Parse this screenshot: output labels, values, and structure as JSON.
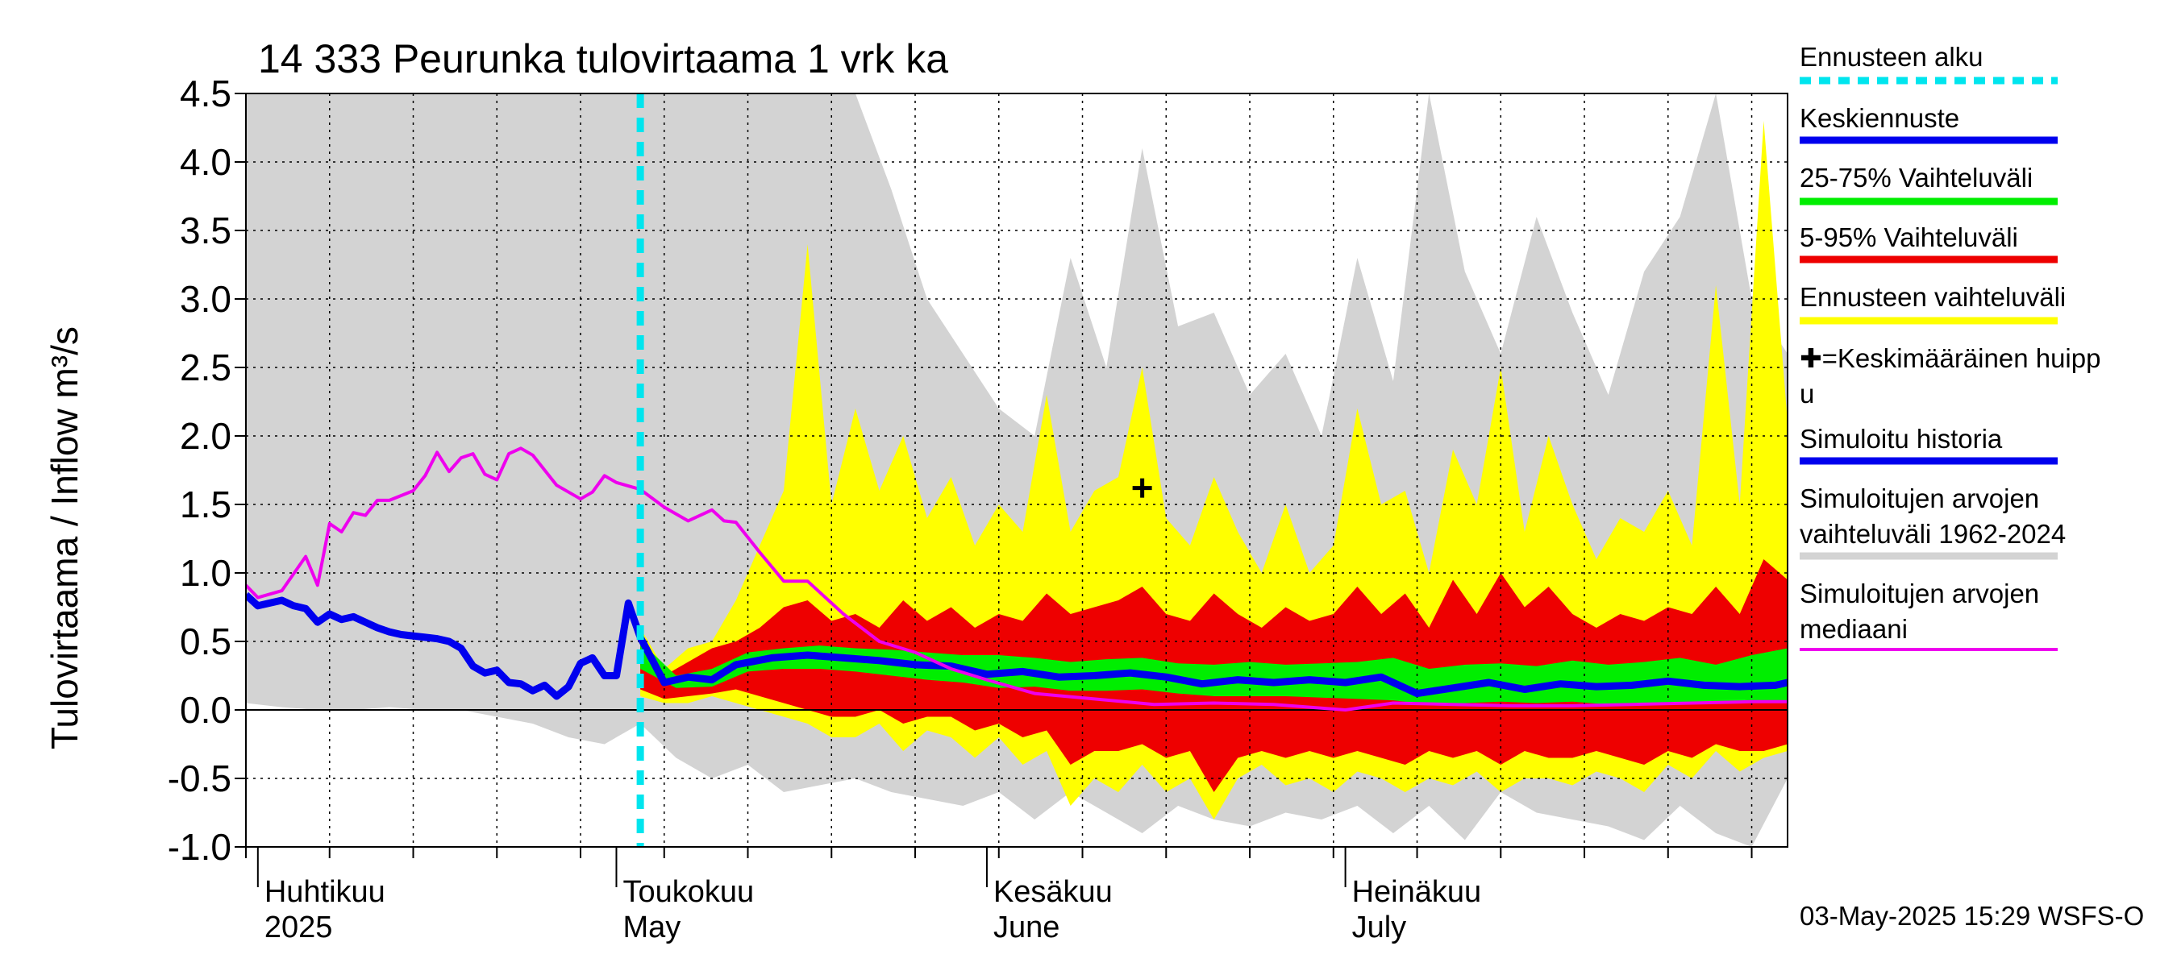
{
  "chart_data": {
    "type": "area",
    "title": "14 333 Peurunka tulovirtaama 1 vrk ka",
    "ylabel": "Tulovirtaama / Inflow   m³/s",
    "ylim": [
      -1.0,
      4.5
    ],
    "yticks": [
      "4.5",
      "4.0",
      "3.5",
      "3.0",
      "2.5",
      "2.0",
      "1.5",
      "1.0",
      "0.5",
      "0.0",
      "-0.5",
      "-1.0"
    ],
    "ytick_values": [
      4.5,
      4.0,
      3.5,
      3.0,
      2.5,
      2.0,
      1.5,
      1.0,
      0.5,
      0.0,
      -0.5,
      -1.0
    ],
    "x_start": "2025-03-31",
    "x_end": "2025-08-07",
    "month_labels": [
      {
        "date": "2025-04-01",
        "line1": "Huhtikuu",
        "line2": "2025"
      },
      {
        "date": "2025-05-01",
        "line1": "Toukokuu",
        "line2": "May"
      },
      {
        "date": "2025-06-01",
        "line1": "Kesäkuu",
        "line2": "June"
      },
      {
        "date": "2025-07-01",
        "line1": "Heinäkuu",
        "line2": "July"
      }
    ],
    "forecast_start": "2025-05-03",
    "mean_peak": {
      "date": "2025-06-14",
      "value": 1.62
    },
    "timestamp": "03-May-2025 15:29 WSFS-O",
    "legend": [
      {
        "label": "Ennusteen alku",
        "color": "#00e5ee",
        "style": "dashed"
      },
      {
        "label": "Keskiennuste",
        "color": "#0000ee",
        "style": "solid"
      },
      {
        "label": "25-75% Vaihteluväli",
        "color": "#00ee00",
        "style": "solid"
      },
      {
        "label": "5-95% Vaihteluväli",
        "color": "#ee0000",
        "style": "solid"
      },
      {
        "label": "Ennusteen vaihteluväli",
        "color": "#ffff00",
        "style": "solid"
      },
      {
        "label": "✚=Keskimääräinen huipp u",
        "color": "#000000",
        "style": "marker"
      },
      {
        "label": "Simuloitu historia",
        "color": "#0000ee",
        "style": "solid"
      },
      {
        "label": "Simuloitujen arvojen vaihteluväli 1962-2024",
        "color": "#d3d3d3",
        "style": "solid"
      },
      {
        "label": "Simuloitujen arvojen mediaani",
        "color": "#ee00ee",
        "style": "solid"
      }
    ],
    "series": [
      {
        "name": "Simuloitu historia",
        "color": "#0000ee",
        "x": [
          "2025-03-31",
          "2025-04-01",
          "2025-04-02",
          "2025-04-03",
          "2025-04-04",
          "2025-04-05",
          "2025-04-06",
          "2025-04-07",
          "2025-04-08",
          "2025-04-09",
          "2025-04-10",
          "2025-04-11",
          "2025-04-12",
          "2025-04-13",
          "2025-04-14",
          "2025-04-15",
          "2025-04-16",
          "2025-04-17",
          "2025-04-18",
          "2025-04-19",
          "2025-04-20",
          "2025-04-21",
          "2025-04-22",
          "2025-04-23",
          "2025-04-24",
          "2025-04-25",
          "2025-04-26",
          "2025-04-27",
          "2025-04-28",
          "2025-04-29",
          "2025-04-30",
          "2025-05-01",
          "2025-05-02",
          "2025-05-03"
        ],
        "values": [
          0.84,
          0.76,
          0.78,
          0.8,
          0.76,
          0.74,
          0.64,
          0.7,
          0.66,
          0.68,
          0.64,
          0.6,
          0.57,
          0.55,
          0.54,
          0.53,
          0.52,
          0.5,
          0.45,
          0.32,
          0.27,
          0.29,
          0.2,
          0.19,
          0.14,
          0.18,
          0.1,
          0.17,
          0.34,
          0.38,
          0.25,
          0.25,
          0.78,
          0.53
        ]
      },
      {
        "name": "Keskiennuste",
        "color": "#0000ee",
        "x": [
          "2025-05-03",
          "2025-05-05",
          "2025-05-07",
          "2025-05-09",
          "2025-05-11",
          "2025-05-14",
          "2025-05-17",
          "2025-05-20",
          "2025-05-23",
          "2025-05-26",
          "2025-05-29",
          "2025-06-01",
          "2025-06-04",
          "2025-06-07",
          "2025-06-10",
          "2025-06-13",
          "2025-06-16",
          "2025-06-19",
          "2025-06-22",
          "2025-06-25",
          "2025-06-28",
          "2025-07-01",
          "2025-07-04",
          "2025-07-07",
          "2025-07-10",
          "2025-07-13",
          "2025-07-16",
          "2025-07-19",
          "2025-07-22",
          "2025-07-25",
          "2025-07-28",
          "2025-07-31",
          "2025-08-03",
          "2025-08-06",
          "2025-08-07"
        ],
        "values": [
          0.53,
          0.2,
          0.24,
          0.22,
          0.33,
          0.38,
          0.4,
          0.38,
          0.36,
          0.33,
          0.32,
          0.26,
          0.28,
          0.24,
          0.25,
          0.27,
          0.24,
          0.19,
          0.22,
          0.2,
          0.22,
          0.2,
          0.24,
          0.12,
          0.16,
          0.2,
          0.15,
          0.19,
          0.17,
          0.18,
          0.21,
          0.18,
          0.17,
          0.18,
          0.2
        ]
      },
      {
        "name": "Simuloitujen arvojen mediaani",
        "color": "#ee00ee",
        "x": [
          "2025-03-31",
          "2025-04-01",
          "2025-04-03",
          "2025-04-05",
          "2025-04-06",
          "2025-04-07",
          "2025-04-08",
          "2025-04-09",
          "2025-04-10",
          "2025-04-11",
          "2025-04-12",
          "2025-04-14",
          "2025-04-15",
          "2025-04-16",
          "2025-04-17",
          "2025-04-18",
          "2025-04-19",
          "2025-04-20",
          "2025-04-21",
          "2025-04-22",
          "2025-04-23",
          "2025-04-24",
          "2025-04-26",
          "2025-04-27",
          "2025-04-28",
          "2025-04-29",
          "2025-04-30",
          "2025-05-01",
          "2025-05-03",
          "2025-05-05",
          "2025-05-07",
          "2025-05-09",
          "2025-05-10",
          "2025-05-11",
          "2025-05-13",
          "2025-05-15",
          "2025-05-17",
          "2025-05-20",
          "2025-05-23",
          "2025-05-26",
          "2025-05-29",
          "2025-06-01",
          "2025-06-05",
          "2025-06-10",
          "2025-06-15",
          "2025-06-20",
          "2025-06-25",
          "2025-07-01",
          "2025-07-05",
          "2025-07-10",
          "2025-07-15",
          "2025-07-20",
          "2025-07-25",
          "2025-07-30",
          "2025-08-04",
          "2025-08-07"
        ],
        "values": [
          0.91,
          0.82,
          0.87,
          1.12,
          0.91,
          1.36,
          1.3,
          1.44,
          1.42,
          1.53,
          1.53,
          1.6,
          1.71,
          1.88,
          1.74,
          1.84,
          1.87,
          1.72,
          1.68,
          1.87,
          1.91,
          1.86,
          1.64,
          1.59,
          1.54,
          1.59,
          1.71,
          1.66,
          1.61,
          1.48,
          1.38,
          1.46,
          1.38,
          1.37,
          1.15,
          0.94,
          0.94,
          0.7,
          0.5,
          0.42,
          0.3,
          0.22,
          0.12,
          0.08,
          0.04,
          0.05,
          0.04,
          0.0,
          0.05,
          0.04,
          0.03,
          0.03,
          0.04,
          0.05,
          0.06,
          0.06
        ]
      }
    ],
    "bands": [
      {
        "name": "Simuloitujen arvojen vaihteluväli 1962-2024",
        "color": "#d3d3d3",
        "x": [
          "2025-03-31",
          "2025-04-03",
          "2025-04-06",
          "2025-04-09",
          "2025-04-12",
          "2025-04-15",
          "2025-04-18",
          "2025-04-21",
          "2025-04-24",
          "2025-04-27",
          "2025-04-30",
          "2025-05-03",
          "2025-05-06",
          "2025-05-09",
          "2025-05-12",
          "2025-05-15",
          "2025-05-18",
          "2025-05-21",
          "2025-05-24",
          "2025-05-27",
          "2025-05-30",
          "2025-06-02",
          "2025-06-05",
          "2025-06-08",
          "2025-06-11",
          "2025-06-14",
          "2025-06-17",
          "2025-06-20",
          "2025-06-23",
          "2025-06-26",
          "2025-06-29",
          "2025-07-02",
          "2025-07-05",
          "2025-07-08",
          "2025-07-11",
          "2025-07-14",
          "2025-07-17",
          "2025-07-20",
          "2025-07-23",
          "2025-07-26",
          "2025-07-29",
          "2025-08-01",
          "2025-08-04",
          "2025-08-07"
        ],
        "upper": [
          4.5,
          4.5,
          4.5,
          4.5,
          4.5,
          4.5,
          4.5,
          4.5,
          4.5,
          4.5,
          4.5,
          4.5,
          4.5,
          4.5,
          4.5,
          4.5,
          4.5,
          4.5,
          3.8,
          3.0,
          2.6,
          2.2,
          2.0,
          3.3,
          2.5,
          4.1,
          2.8,
          2.9,
          2.3,
          2.6,
          2.0,
          3.3,
          2.4,
          4.5,
          3.2,
          2.6,
          3.6,
          2.9,
          2.3,
          3.2,
          3.6,
          4.5,
          3.0,
          2.6
        ],
        "lower": [
          0.05,
          0.02,
          0.0,
          0.0,
          0.02,
          0.0,
          0.0,
          -0.05,
          -0.1,
          -0.2,
          -0.25,
          -0.1,
          -0.35,
          -0.5,
          -0.4,
          -0.6,
          -0.55,
          -0.5,
          -0.6,
          -0.65,
          -0.7,
          -0.6,
          -0.8,
          -0.6,
          -0.75,
          -0.9,
          -0.7,
          -0.8,
          -0.85,
          -0.75,
          -0.8,
          -0.7,
          -0.9,
          -0.7,
          -0.95,
          -0.6,
          -0.75,
          -0.8,
          -0.85,
          -0.95,
          -0.7,
          -0.9,
          -1.0,
          -0.5
        ]
      },
      {
        "name": "Ennusteen vaihteluväli",
        "color": "#ffff00",
        "x": [
          "2025-05-03",
          "2025-05-05",
          "2025-05-07",
          "2025-05-09",
          "2025-05-11",
          "2025-05-13",
          "2025-05-15",
          "2025-05-17",
          "2025-05-19",
          "2025-05-21",
          "2025-05-23",
          "2025-05-25",
          "2025-05-27",
          "2025-05-29",
          "2025-05-31",
          "2025-06-02",
          "2025-06-04",
          "2025-06-06",
          "2025-06-08",
          "2025-06-10",
          "2025-06-12",
          "2025-06-14",
          "2025-06-16",
          "2025-06-18",
          "2025-06-20",
          "2025-06-22",
          "2025-06-24",
          "2025-06-26",
          "2025-06-28",
          "2025-06-30",
          "2025-07-02",
          "2025-07-04",
          "2025-07-06",
          "2025-07-08",
          "2025-07-10",
          "2025-07-12",
          "2025-07-14",
          "2025-07-16",
          "2025-07-18",
          "2025-07-20",
          "2025-07-22",
          "2025-07-24",
          "2025-07-26",
          "2025-07-28",
          "2025-07-30",
          "2025-08-01",
          "2025-08-03",
          "2025-08-05",
          "2025-08-07"
        ],
        "upper": [
          0.6,
          0.3,
          0.45,
          0.5,
          0.8,
          1.2,
          1.6,
          3.4,
          1.5,
          2.2,
          1.6,
          2.0,
          1.4,
          1.7,
          1.2,
          1.5,
          1.3,
          2.3,
          1.3,
          1.6,
          1.7,
          2.5,
          1.4,
          1.2,
          1.7,
          1.3,
          1.0,
          1.5,
          1.0,
          1.2,
          2.2,
          1.5,
          1.6,
          1.0,
          1.9,
          1.5,
          2.5,
          1.3,
          2.0,
          1.5,
          1.1,
          1.4,
          1.3,
          1.6,
          1.2,
          3.1,
          1.5,
          4.3,
          2.1
        ],
        "lower": [
          0.1,
          0.05,
          0.05,
          0.1,
          0.05,
          0.0,
          -0.05,
          -0.1,
          -0.2,
          -0.2,
          -0.1,
          -0.3,
          -0.15,
          -0.2,
          -0.35,
          -0.2,
          -0.4,
          -0.3,
          -0.7,
          -0.5,
          -0.6,
          -0.4,
          -0.6,
          -0.5,
          -0.8,
          -0.5,
          -0.4,
          -0.55,
          -0.5,
          -0.6,
          -0.45,
          -0.5,
          -0.6,
          -0.5,
          -0.55,
          -0.45,
          -0.6,
          -0.5,
          -0.5,
          -0.55,
          -0.45,
          -0.5,
          -0.6,
          -0.4,
          -0.5,
          -0.3,
          -0.45,
          -0.35,
          -0.3
        ]
      },
      {
        "name": "5-95% Vaihteluväli",
        "color": "#ee0000",
        "x": [
          "2025-05-03",
          "2025-05-05",
          "2025-05-07",
          "2025-05-09",
          "2025-05-11",
          "2025-05-13",
          "2025-05-15",
          "2025-05-17",
          "2025-05-19",
          "2025-05-21",
          "2025-05-23",
          "2025-05-25",
          "2025-05-27",
          "2025-05-29",
          "2025-05-31",
          "2025-06-02",
          "2025-06-04",
          "2025-06-06",
          "2025-06-08",
          "2025-06-10",
          "2025-06-12",
          "2025-06-14",
          "2025-06-16",
          "2025-06-18",
          "2025-06-20",
          "2025-06-22",
          "2025-06-24",
          "2025-06-26",
          "2025-06-28",
          "2025-06-30",
          "2025-07-02",
          "2025-07-04",
          "2025-07-06",
          "2025-07-08",
          "2025-07-10",
          "2025-07-12",
          "2025-07-14",
          "2025-07-16",
          "2025-07-18",
          "2025-07-20",
          "2025-07-22",
          "2025-07-24",
          "2025-07-26",
          "2025-07-28",
          "2025-07-30",
          "2025-08-01",
          "2025-08-03",
          "2025-08-05",
          "2025-08-07"
        ],
        "upper": [
          0.55,
          0.25,
          0.35,
          0.45,
          0.5,
          0.6,
          0.75,
          0.8,
          0.65,
          0.7,
          0.6,
          0.8,
          0.65,
          0.75,
          0.6,
          0.7,
          0.65,
          0.85,
          0.7,
          0.75,
          0.8,
          0.9,
          0.7,
          0.65,
          0.85,
          0.7,
          0.6,
          0.75,
          0.65,
          0.7,
          0.9,
          0.7,
          0.85,
          0.6,
          0.95,
          0.7,
          1.0,
          0.75,
          0.9,
          0.7,
          0.6,
          0.7,
          0.65,
          0.75,
          0.7,
          0.9,
          0.7,
          1.1,
          0.95
        ],
        "lower": [
          0.15,
          0.08,
          0.1,
          0.12,
          0.15,
          0.1,
          0.05,
          0.0,
          -0.05,
          -0.05,
          0.0,
          -0.1,
          -0.05,
          -0.05,
          -0.15,
          -0.1,
          -0.2,
          -0.15,
          -0.4,
          -0.3,
          -0.3,
          -0.25,
          -0.35,
          -0.3,
          -0.6,
          -0.35,
          -0.3,
          -0.35,
          -0.3,
          -0.35,
          -0.3,
          -0.35,
          -0.4,
          -0.3,
          -0.35,
          -0.3,
          -0.4,
          -0.3,
          -0.35,
          -0.35,
          -0.3,
          -0.35,
          -0.4,
          -0.3,
          -0.35,
          -0.25,
          -0.3,
          -0.3,
          -0.25
        ]
      },
      {
        "name": "25-75% Vaihteluväli",
        "color": "#00ee00",
        "x": [
          "2025-05-03",
          "2025-05-06",
          "2025-05-09",
          "2025-05-12",
          "2025-05-15",
          "2025-05-18",
          "2025-05-21",
          "2025-05-24",
          "2025-05-27",
          "2025-05-30",
          "2025-06-02",
          "2025-06-05",
          "2025-06-08",
          "2025-06-11",
          "2025-06-14",
          "2025-06-17",
          "2025-06-20",
          "2025-06-23",
          "2025-06-26",
          "2025-06-29",
          "2025-07-02",
          "2025-07-05",
          "2025-07-08",
          "2025-07-11",
          "2025-07-14",
          "2025-07-17",
          "2025-07-20",
          "2025-07-23",
          "2025-07-26",
          "2025-07-29",
          "2025-08-01",
          "2025-08-04",
          "2025-08-07"
        ],
        "upper": [
          0.5,
          0.25,
          0.3,
          0.42,
          0.45,
          0.47,
          0.45,
          0.44,
          0.42,
          0.4,
          0.4,
          0.38,
          0.35,
          0.37,
          0.38,
          0.34,
          0.33,
          0.35,
          0.33,
          0.34,
          0.35,
          0.38,
          0.3,
          0.33,
          0.34,
          0.32,
          0.36,
          0.33,
          0.35,
          0.38,
          0.33,
          0.4,
          0.45
        ],
        "lower": [
          0.3,
          0.16,
          0.17,
          0.28,
          0.3,
          0.3,
          0.28,
          0.25,
          0.22,
          0.2,
          0.16,
          0.17,
          0.14,
          0.14,
          0.15,
          0.12,
          0.1,
          0.1,
          0.1,
          0.09,
          0.08,
          0.07,
          0.04,
          0.05,
          0.06,
          0.05,
          0.06,
          0.04,
          0.05,
          0.05,
          0.06,
          0.05,
          0.07
        ]
      }
    ]
  }
}
